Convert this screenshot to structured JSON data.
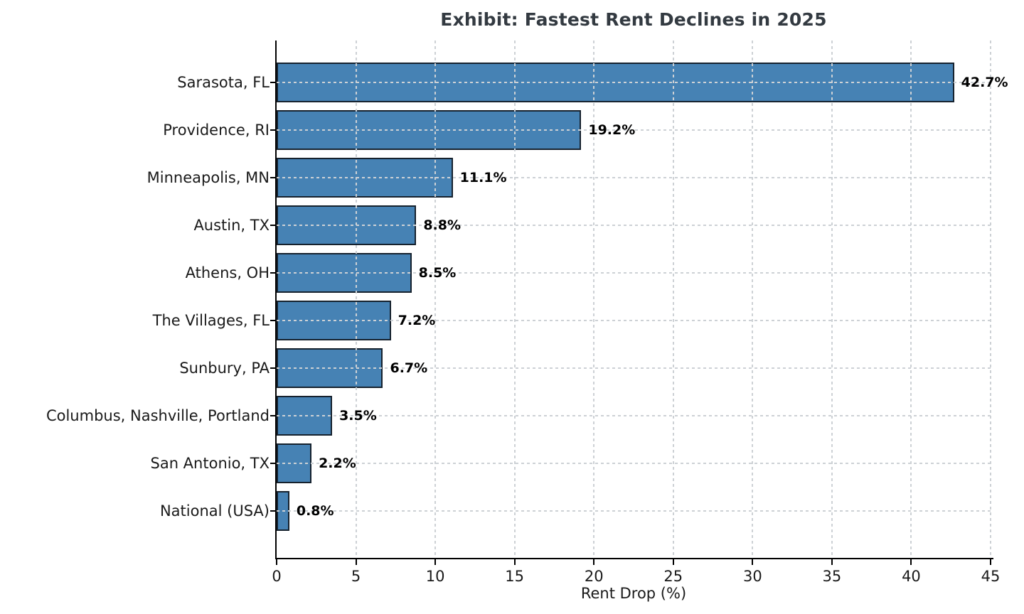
{
  "chart_data": {
    "type": "bar",
    "orientation": "horizontal",
    "title": "Exhibit: Fastest Rent Declines in 2025",
    "xlabel": "Rent Drop (%)",
    "categories": [
      "Sarasota, FL",
      "Providence, RI",
      "Minneapolis, MN",
      "Austin, TX",
      "Athens, OH",
      "The Villages, FL",
      "Sunbury, PA",
      "Columbus, Nashville, Portland",
      "San Antonio, TX",
      "National (USA)"
    ],
    "values": [
      42.7,
      19.2,
      11.1,
      8.8,
      8.5,
      7.2,
      6.7,
      3.5,
      2.2,
      0.8
    ],
    "value_labels": [
      "42.7%",
      "19.2%",
      "11.1%",
      "8.8%",
      "8.5%",
      "7.2%",
      "6.7%",
      "3.5%",
      "2.2%",
      "0.8%"
    ],
    "xlim": [
      0,
      45
    ],
    "xticks": [
      0,
      5,
      10,
      15,
      20,
      25,
      30,
      35,
      40,
      45
    ],
    "grid": "dashed both axes, drawn over bars",
    "legend": "none",
    "colors": {
      "bar_fill": "#4682b4",
      "bar_edge": "#16222e",
      "grid": "#cdd1d5",
      "title": "#333a41",
      "text": "#1a1a1a",
      "value_label": "#000000",
      "axis": "#000000",
      "background": "#ffffff"
    }
  }
}
